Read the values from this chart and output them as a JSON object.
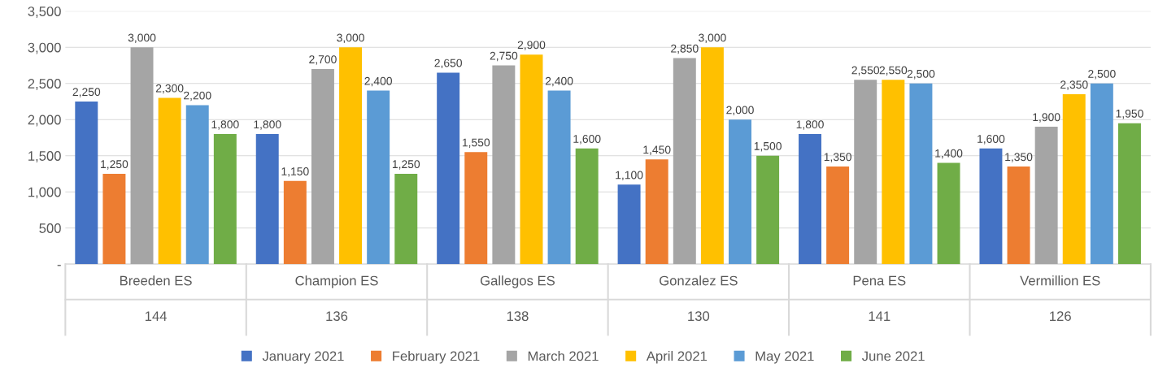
{
  "chart_data": {
    "type": "bar",
    "categories": [
      "Breeden ES",
      "Champion ES",
      "Gallegos ES",
      "Gonzalez ES",
      "Pena ES",
      "Vermillion ES"
    ],
    "annotations": [
      "144",
      "136",
      "138",
      "130",
      "141",
      "126"
    ],
    "series": [
      {
        "name": "January 2021",
        "color": "#4472c4",
        "values": [
          2250,
          1800,
          2650,
          1100,
          1800,
          1600
        ],
        "value_labels": [
          "2,250",
          "1,800",
          "2,650",
          "1,100",
          "1,800",
          "1,600"
        ]
      },
      {
        "name": "February 2021",
        "color": "#ed7d31",
        "values": [
          1250,
          1150,
          1550,
          1450,
          1350,
          1350
        ],
        "value_labels": [
          "1,250",
          "1,150",
          "1,550",
          "1,450",
          "1,350",
          "1,350"
        ]
      },
      {
        "name": "March 2021",
        "color": "#a5a5a5",
        "values": [
          3000,
          2700,
          2750,
          2850,
          2550,
          1900
        ],
        "value_labels": [
          "3,000",
          "2,700",
          "2,750",
          "2,850",
          "2,550",
          "1,900"
        ]
      },
      {
        "name": "April 2021",
        "color": "#ffc000",
        "values": [
          2300,
          3000,
          2900,
          3000,
          2550,
          2350
        ],
        "value_labels": [
          "2,300",
          "3,000",
          "2,900",
          "3,000",
          "2,550",
          "2,350"
        ]
      },
      {
        "name": "May 2021",
        "color": "#5b9bd5",
        "values": [
          2200,
          2400,
          2400,
          2000,
          2500,
          2500
        ],
        "value_labels": [
          "2,200",
          "2,400",
          "2,400",
          "2,000",
          "2,500",
          "2,500"
        ]
      },
      {
        "name": "June 2021",
        "color": "#70ad47",
        "values": [
          1800,
          1250,
          1600,
          1500,
          1400,
          1950
        ],
        "value_labels": [
          "1,800",
          "1,250",
          "1,600",
          "1,500",
          "1,400",
          "1,950"
        ]
      }
    ],
    "ylim": [
      0,
      3500
    ],
    "yticks": [
      {
        "value": 0,
        "label": "-"
      },
      {
        "value": 500,
        "label": "500"
      },
      {
        "value": 1000,
        "label": "1,000"
      },
      {
        "value": 1500,
        "label": "1,500"
      },
      {
        "value": 2000,
        "label": "2,000"
      },
      {
        "value": 2500,
        "label": "2,500"
      },
      {
        "value": 3000,
        "label": "3,000"
      },
      {
        "value": 3500,
        "label": "3,500"
      }
    ],
    "grid": "y",
    "legend": "bottom"
  }
}
